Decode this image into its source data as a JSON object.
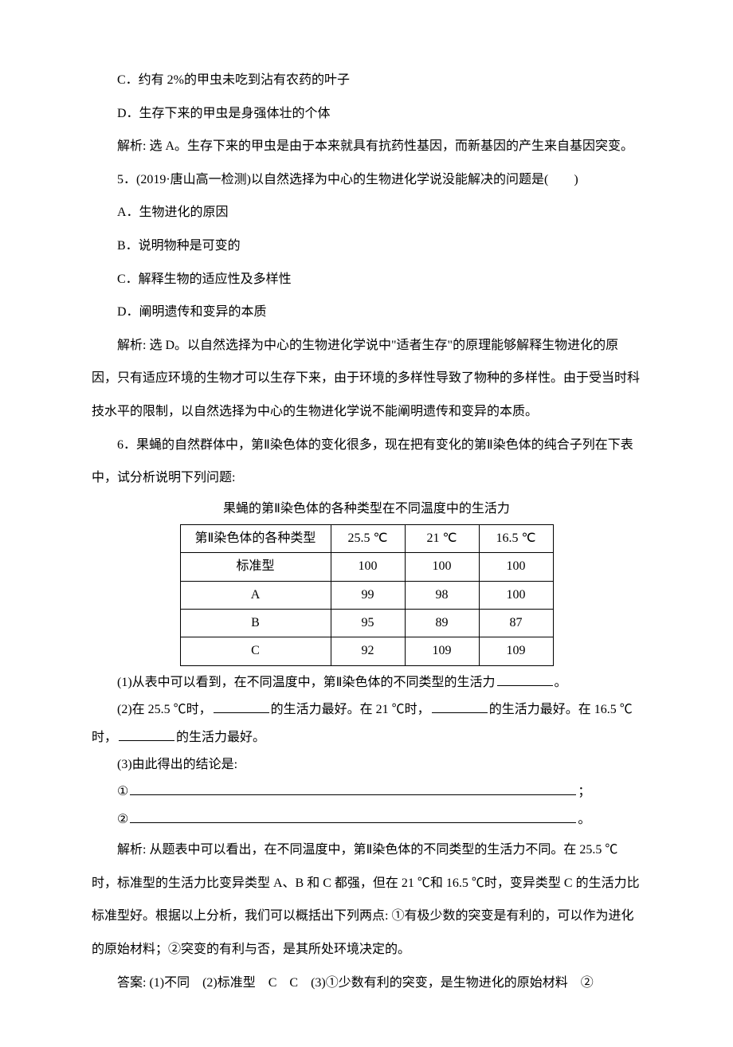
{
  "opt_c": "C．约有 2%的甲虫未吃到沾有农药的叶子",
  "opt_d": "D．生存下来的甲虫是身强体壮的个体",
  "ans4": "解析: 选 A。生存下来的甲虫是由于本来就具有抗药性基因，而新基因的产生来自基因突变。",
  "q5": "5．(2019·唐山高一检测)以自然选择为中心的生物进化学说没能解决的问题是(　　)",
  "q5a": "A．生物进化的原因",
  "q5b": "B．说明物种是可变的",
  "q5c": "C．解释生物的适应性及多样性",
  "q5d": "D．阐明遗传和变异的本质",
  "ans5": "解析: 选 D。以自然选择为中心的生物进化学说中\"适者生存\"的原理能够解释生物进化的原因，只有适应环境的生物才可以生存下来，由于环境的多样性导致了物种的多样性。由于受当时科技水平的限制，以自然选择为中心的生物进化学说不能阐明遗传和变异的本质。",
  "q6_intro": "6．果蝇的自然群体中，第Ⅱ染色体的变化很多，现在把有变化的第Ⅱ染色体的纯合子列在下表中，试分析说明下列问题:",
  "table_caption": "果蝇的第Ⅱ染色体的各种类型在不同温度中的生活力",
  "table": {
    "headers": [
      "第Ⅱ染色体的各种类型",
      "25.5 ℃",
      "21 ℃",
      "16.5 ℃"
    ],
    "rows": [
      [
        "标准型",
        "100",
        "100",
        "100"
      ],
      [
        "A",
        "99",
        "98",
        "100"
      ],
      [
        "B",
        "95",
        "89",
        "87"
      ],
      [
        "C",
        "92",
        "109",
        "109"
      ]
    ]
  },
  "q6_1_a": "(1)从表中可以看到，在不同温度中，第Ⅱ染色体的不同类型的生活力",
  "q6_1_b": "。",
  "q6_2_a": "(2)在 25.5 ℃时，",
  "q6_2_b": "的生活力最好。在 21 ℃时，",
  "q6_2_c": "的生活力最好。在 16.5 ℃时，",
  "q6_2_d": "的生活力最好。",
  "q6_3": "(3)由此得出的结论是:",
  "circle1": "①",
  "semicolon": "；",
  "circle2": "②",
  "period": "。",
  "ans6_p1": "解析: 从题表中可以看出，在不同温度中，第Ⅱ染色体的不同类型的生活力不同。在 25.5 ℃时，标准型的生活力比变异类型 A、B 和 C 都强，但在 21 ℃和 16.5 ℃时，变异类型 C 的生活力比标准型好。根据以上分析，我们可以概括出下列两点: ①有极少数的突变是有利的，可以作为进化的原始材料；②突变的有利与否，是其所处环境决定的。",
  "ans6_p2": "答案: (1)不同　(2)标准型　C　C　(3)①少数有利的突变，是生物进化的原始材料　②"
}
